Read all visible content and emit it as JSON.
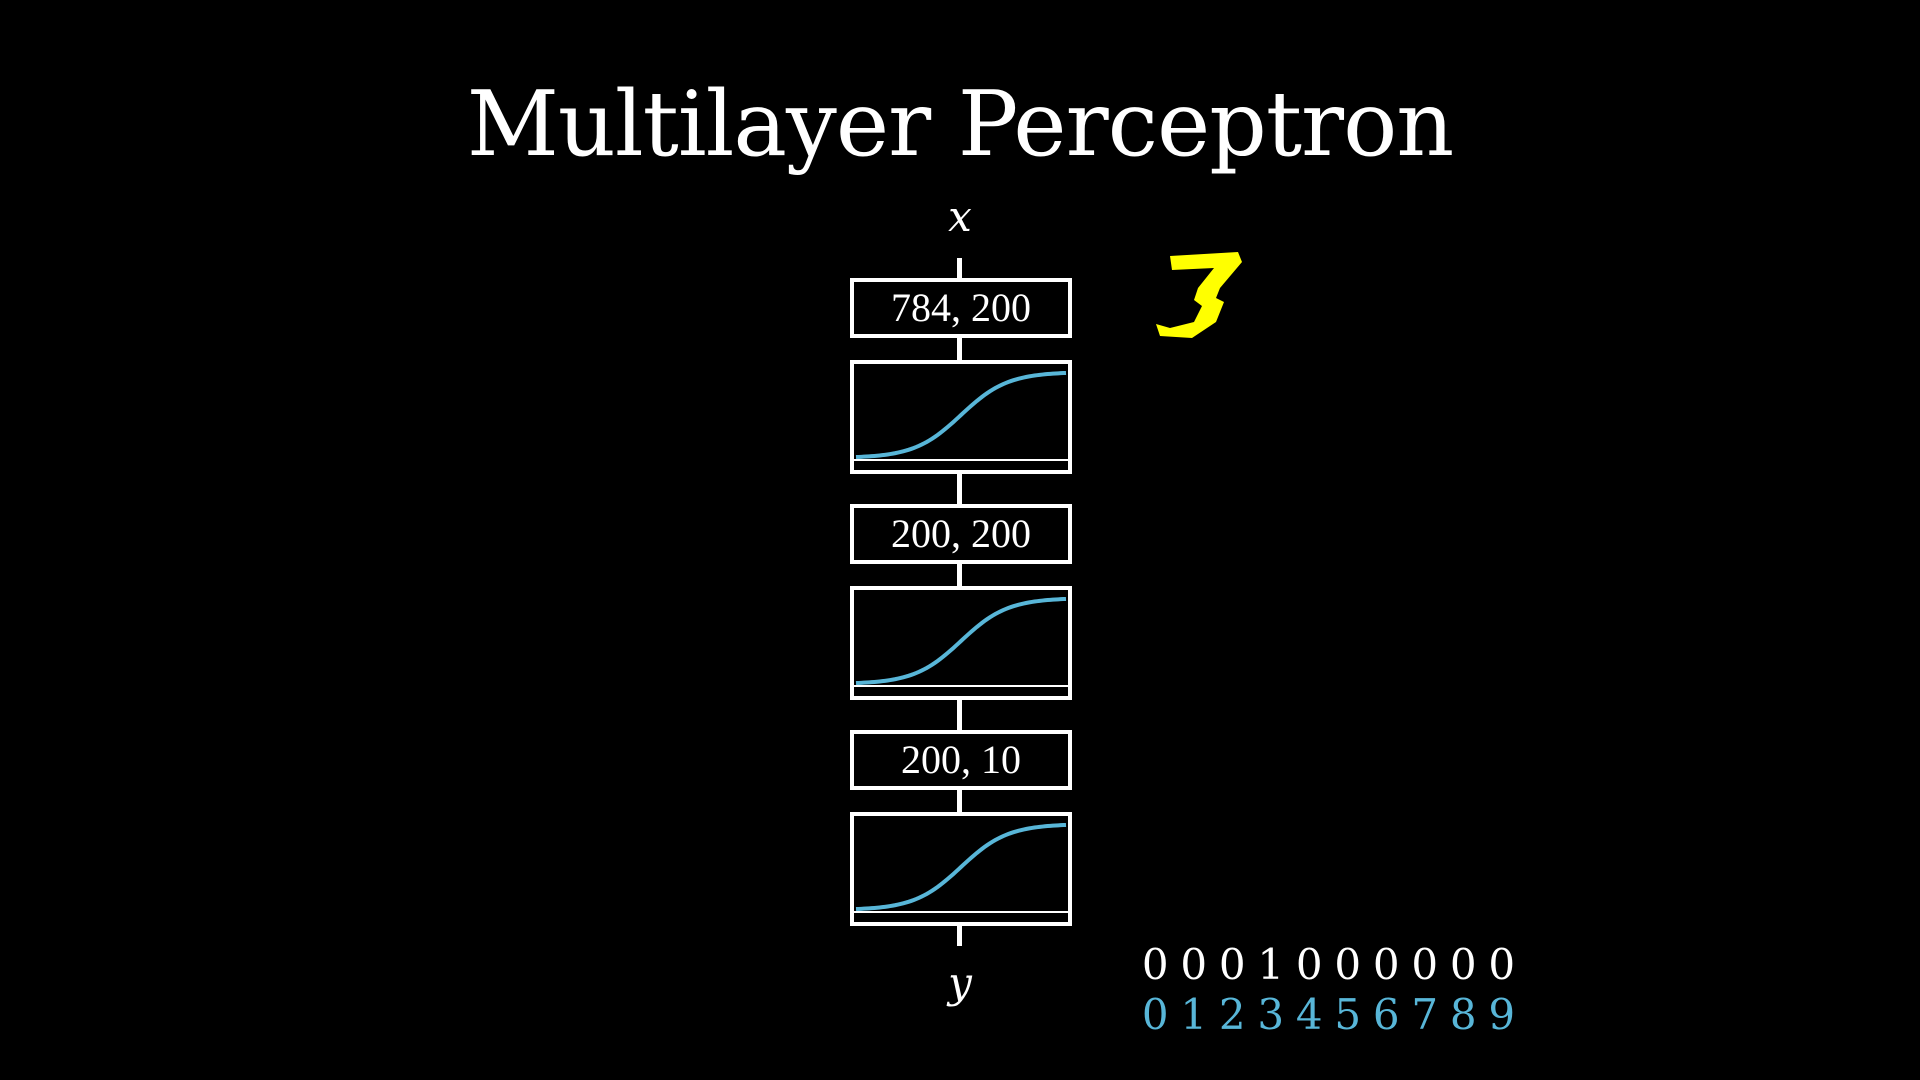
{
  "title": "Multilayer Perceptron",
  "input_label": "x",
  "output_label": "y",
  "layers": [
    {
      "type": "linear",
      "label": "784, 200"
    },
    {
      "type": "activation",
      "curve": "sigmoid"
    },
    {
      "type": "linear",
      "label": "200, 200"
    },
    {
      "type": "activation",
      "curve": "sigmoid"
    },
    {
      "type": "linear",
      "label": "200, 10"
    },
    {
      "type": "activation",
      "curve": "sigmoid"
    }
  ],
  "input_digit": "3",
  "output_vector": [
    "0",
    "0",
    "0",
    "1",
    "0",
    "0",
    "0",
    "0",
    "0",
    "0"
  ],
  "class_labels": [
    "0",
    "1",
    "2",
    "3",
    "4",
    "5",
    "6",
    "7",
    "8",
    "9"
  ],
  "colors": {
    "background": "#000000",
    "foreground": "#ffffff",
    "curve": "#58b6d8",
    "class_labels": "#58b6d8",
    "digit": "#ffff00"
  }
}
